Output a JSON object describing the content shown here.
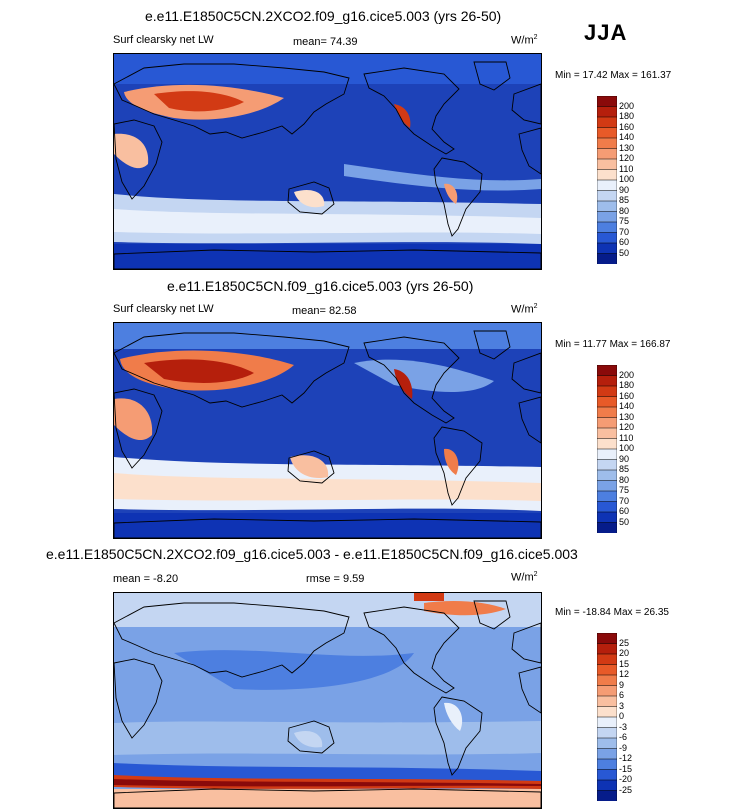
{
  "season": "JJA",
  "panels": [
    {
      "title": "e.e11.E1850C5CN.2XCO2.f09_g16.cice5.003 (yrs 26-50)",
      "left_label": "Surf clearsky net LW",
      "center_label": "mean=  74.39",
      "units": "W/m",
      "units_sup": "2",
      "minmax": "Min = 17.42 Max = 161.37",
      "colorbar": {
        "levels": [
          "200",
          "180",
          "160",
          "140",
          "130",
          "120",
          "110",
          "100",
          "90",
          "85",
          "80",
          "75",
          "70",
          "60",
          "50"
        ],
        "colors": [
          "#8a0a0a",
          "#b51f0c",
          "#d23a14",
          "#e85a28",
          "#f07c4a",
          "#f59c74",
          "#f9bfa0",
          "#fce0cc",
          "#e9f0fb",
          "#c4d6f2",
          "#9ebdeb",
          "#7aa2e6",
          "#4d7fe0",
          "#2858d4",
          "#0e33b4",
          "#061c8a"
        ]
      }
    },
    {
      "title": "e.e11.E1850C5CN.f09_g16.cice5.003 (yrs 26-50)",
      "left_label": "Surf clearsky net LW",
      "center_label": "mean=  82.58",
      "units": "W/m",
      "units_sup": "2",
      "minmax": "Min = 11.77 Max = 166.87",
      "colorbar": {
        "levels": [
          "200",
          "180",
          "160",
          "140",
          "130",
          "120",
          "110",
          "100",
          "90",
          "85",
          "80",
          "75",
          "70",
          "60",
          "50"
        ],
        "colors": [
          "#8a0a0a",
          "#b51f0c",
          "#d23a14",
          "#e85a28",
          "#f07c4a",
          "#f59c74",
          "#f9bfa0",
          "#fce0cc",
          "#e9f0fb",
          "#c4d6f2",
          "#9ebdeb",
          "#7aa2e6",
          "#4d7fe0",
          "#2858d4",
          "#0e33b4",
          "#061c8a"
        ]
      }
    },
    {
      "title": "e.e11.E1850C5CN.2XCO2.f09_g16.cice5.003 - e.e11.E1850C5CN.f09_g16.cice5.003",
      "left_label": "mean =  -8.20",
      "center_label": "rmse =  9.59",
      "units": "W/m",
      "units_sup": "2",
      "minmax": "Min = -18.84 Max =  26.35",
      "colorbar": {
        "levels": [
          "25",
          "20",
          "15",
          "12",
          "9",
          "6",
          "3",
          "0",
          "-3",
          "-6",
          "-9",
          "-12",
          "-15",
          "-20",
          "-25"
        ],
        "colors": [
          "#8a0a0a",
          "#b51f0c",
          "#d23a14",
          "#e85a28",
          "#f07c4a",
          "#f59c74",
          "#f9bfa0",
          "#fce0cc",
          "#e9f0fb",
          "#c4d6f2",
          "#9ebdeb",
          "#7aa2e6",
          "#4d7fe0",
          "#2858d4",
          "#0e33b4",
          "#061c8a"
        ]
      }
    }
  ],
  "chart_data": [
    {
      "type": "heatmap",
      "title": "e.e11.E1850C5CN.2XCO2.f09_g16.cice5.003 (yrs 26-50)",
      "variable": "Surf clearsky net LW",
      "mean": 74.39,
      "min": 17.42,
      "max": 161.37,
      "contour_levels": [
        50,
        60,
        70,
        75,
        80,
        85,
        90,
        100,
        110,
        120,
        130,
        140,
        160,
        180,
        200
      ]
    },
    {
      "type": "heatmap",
      "title": "e.e11.E1850C5CN.f09_g16.cice5.003 (yrs 26-50)",
      "variable": "Surf clearsky net LW",
      "mean": 82.58,
      "min": 11.77,
      "max": 166.87,
      "contour_levels": [
        50,
        60,
        70,
        75,
        80,
        85,
        90,
        100,
        110,
        120,
        130,
        140,
        160,
        180,
        200
      ]
    },
    {
      "type": "heatmap",
      "title": "e.e11.E1850C5CN.2XCO2.f09_g16.cice5.003 - e.e11.E1850C5CN.f09_g16.cice5.003",
      "mean": -8.2,
      "rmse": 9.59,
      "min": -18.84,
      "max": 26.35,
      "contour_levels": [
        -25,
        -20,
        -15,
        -12,
        -9,
        -6,
        -3,
        0,
        3,
        6,
        9,
        12,
        15,
        20,
        25
      ]
    }
  ]
}
